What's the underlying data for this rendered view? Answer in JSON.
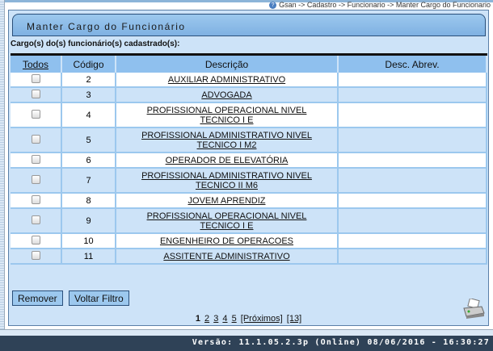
{
  "breadcrumb": "Gsan -> Cadastro -> Funcionario -> Manter Cargo do Funcionario",
  "title": "Manter Cargo do Funcionário",
  "subtitle": "Cargo(s) do(s) funcionário(s) cadastrado(s):",
  "columns": [
    "Todos",
    "Código",
    "Descrição",
    "Desc. Abrev."
  ],
  "rows": [
    {
      "codigo": "2",
      "descricao": "AUXILIAR ADMINISTRATIVO",
      "abrev": ""
    },
    {
      "codigo": "3",
      "descricao": "ADVOGADA",
      "abrev": ""
    },
    {
      "codigo": "4",
      "descricao": "PROFISSIONAL OPERACIONAL NIVEL TECNICO I E",
      "abrev": ""
    },
    {
      "codigo": "5",
      "descricao": "PROFISSIONAL ADMINISTRATIVO NIVEL TECNICO I M2",
      "abrev": ""
    },
    {
      "codigo": "6",
      "descricao": "OPERADOR DE ELEVATÓRIA",
      "abrev": ""
    },
    {
      "codigo": "7",
      "descricao": "PROFISSIONAL ADMINISTRATIVO NIVEL TECNICO II M6",
      "abrev": ""
    },
    {
      "codigo": "8",
      "descricao": "JOVEM APRENDIZ",
      "abrev": ""
    },
    {
      "codigo": "9",
      "descricao": "PROFISSIONAL OPERACIONAL NIVEL TECNICO I E",
      "abrev": ""
    },
    {
      "codigo": "10",
      "descricao": "ENGENHEIRO DE OPERACOES",
      "abrev": ""
    },
    {
      "codigo": "11",
      "descricao": "ASSITENTE ADMINISTRATIVO",
      "abrev": ""
    }
  ],
  "buttons": {
    "remover": "Remover",
    "voltar": "Voltar Filtro"
  },
  "pager": {
    "current": "1",
    "pages": [
      "2",
      "3",
      "4",
      "5"
    ],
    "next": "[Próximos]",
    "last": "[13]"
  },
  "footer": "Versão: 11.1.05.2.3p (Online) 08/06/2016 - 16:30:27",
  "icons": {
    "help": "help-icon",
    "print": "printer-icon"
  }
}
